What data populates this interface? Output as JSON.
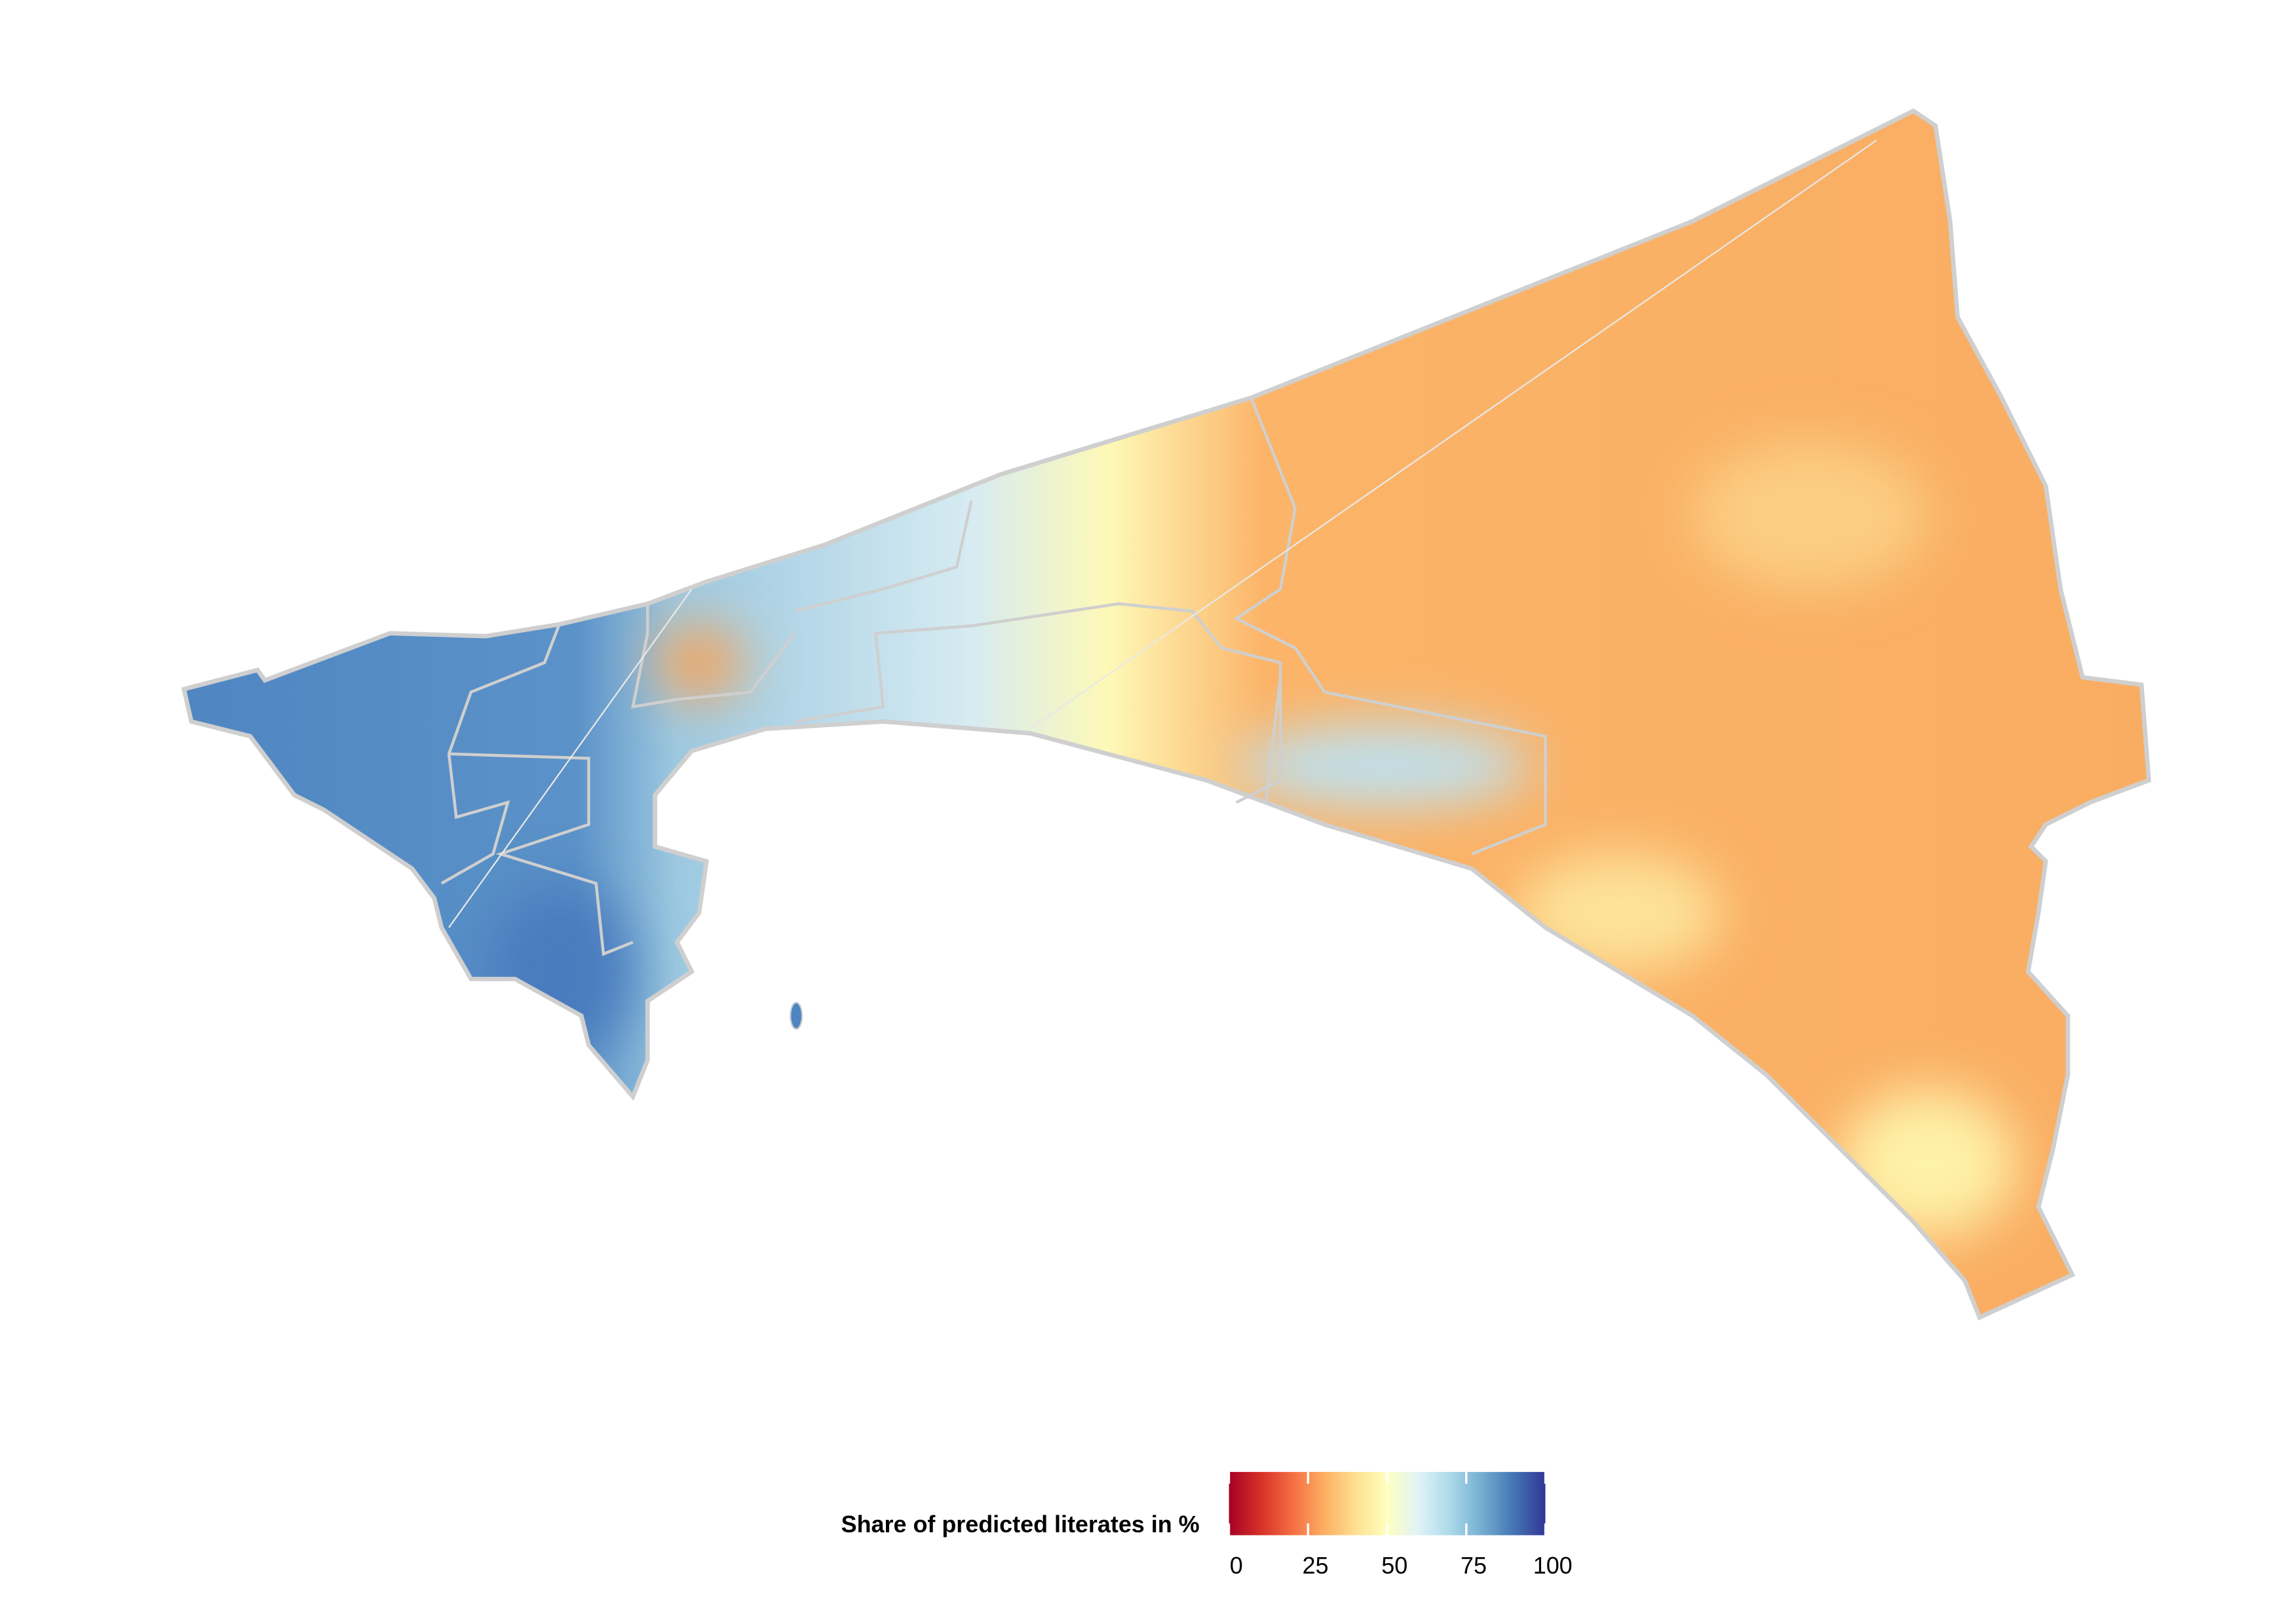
{
  "legend": {
    "title": "Share of predicted literates in %",
    "limits": [
      0,
      100
    ],
    "ticks": [
      0,
      25,
      50,
      75,
      100
    ],
    "colors": [
      "#a50026",
      "#d73027",
      "#f46d43",
      "#fdae61",
      "#fee090",
      "#ffffbf",
      "#e0f3f8",
      "#abd9e9",
      "#74add1",
      "#4575b4",
      "#313695"
    ]
  }
}
